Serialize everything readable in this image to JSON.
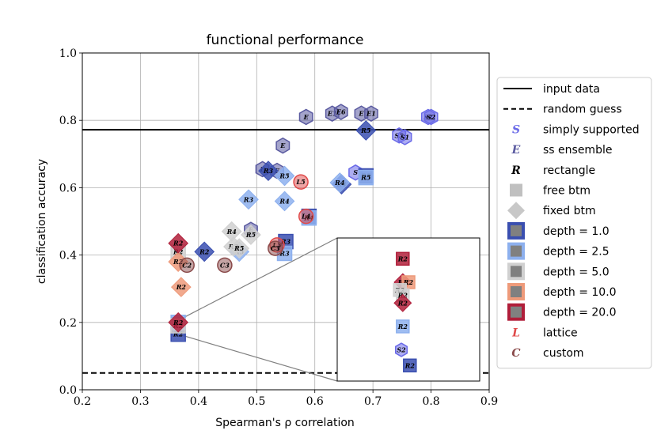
{
  "chart_data": {
    "type": "scatter",
    "title": "functional performance",
    "xlabel": "Spearman's ρ correlation",
    "ylabel": "classification accuracy",
    "xlim": [
      0.2,
      0.9
    ],
    "ylim": [
      0.0,
      1.0
    ],
    "xticks": [
      "0.2",
      "0.3",
      "0.4",
      "0.5",
      "0.6",
      "0.7",
      "0.8",
      "0.9"
    ],
    "yticks": [
      "0.0",
      "0.2",
      "0.4",
      "0.6",
      "0.8",
      "1.0"
    ],
    "grid": true,
    "legend_position": "outside-right",
    "hlines": [
      {
        "name": "input data",
        "y": 0.772,
        "style": "solid"
      },
      {
        "name": "random guess",
        "y": 0.05,
        "style": "dashed"
      }
    ],
    "colors": {
      "depth_1": "#3a4fb0",
      "depth_2_5": "#8db0ee",
      "depth_5": "#d0d0d0",
      "depth_10": "#ee9a7a",
      "depth_20": "#b01e3a",
      "ss_ensemble": "#5a5aa0",
      "simply_supported": "#6a6ae8",
      "lattice": "#e04a4a",
      "custom": "#8a4a4a"
    },
    "legend": [
      {
        "label": "input data",
        "kind": "line-solid"
      },
      {
        "label": "random guess",
        "kind": "line-dashed"
      },
      {
        "label": "simply supported",
        "kind": "letter",
        "letter": "S",
        "color": "simply_supported"
      },
      {
        "label": "ss ensemble",
        "kind": "letter",
        "letter": "E",
        "color": "ss_ensemble"
      },
      {
        "label": "rectangle",
        "kind": "letter",
        "letter": "R",
        "color": "black"
      },
      {
        "label": "free btm",
        "kind": "square"
      },
      {
        "label": "fixed btm",
        "kind": "diamond"
      },
      {
        "label": "depth = 1.0",
        "kind": "depth",
        "color": "depth_1"
      },
      {
        "label": "depth = 2.5",
        "kind": "depth",
        "color": "depth_2_5"
      },
      {
        "label": "depth = 5.0",
        "kind": "depth",
        "color": "depth_5"
      },
      {
        "label": "depth = 10.0",
        "kind": "depth",
        "color": "depth_10"
      },
      {
        "label": "depth = 20.0",
        "kind": "depth",
        "color": "depth_20"
      },
      {
        "label": "lattice",
        "kind": "letter",
        "letter": "L",
        "color": "lattice"
      },
      {
        "label": "custom",
        "kind": "letter",
        "letter": "C",
        "color": "custom"
      }
    ],
    "series": [
      {
        "name": "ss ensemble",
        "shape": "hexagon",
        "color": "ss_ensemble",
        "points": [
          {
            "x": 0.585,
            "y": 0.81,
            "label": "E"
          },
          {
            "x": 0.63,
            "y": 0.82,
            "label": "E1"
          },
          {
            "x": 0.645,
            "y": 0.825,
            "label": "E6"
          },
          {
            "x": 0.68,
            "y": 0.82,
            "label": "E"
          },
          {
            "x": 0.697,
            "y": 0.82,
            "label": "E1"
          },
          {
            "x": 0.545,
            "y": 0.725,
            "label": "E"
          },
          {
            "x": 0.51,
            "y": 0.655,
            "label": "E"
          },
          {
            "x": 0.535,
            "y": 0.65,
            "label": "E"
          },
          {
            "x": 0.49,
            "y": 0.475,
            "label": "E"
          }
        ]
      },
      {
        "name": "simply supported",
        "shape": "hexagon",
        "color": "simply_supported",
        "points": [
          {
            "x": 0.745,
            "y": 0.755,
            "label": "S5"
          },
          {
            "x": 0.755,
            "y": 0.75,
            "label": "S1"
          },
          {
            "x": 0.795,
            "y": 0.81,
            "label": "S2"
          },
          {
            "x": 0.8,
            "y": 0.81,
            "label": "S2"
          },
          {
            "x": 0.67,
            "y": 0.645,
            "label": "S"
          }
        ]
      },
      {
        "name": "depth 1.0 fixed btm",
        "shape": "diamond",
        "color": "depth_1",
        "points": [
          {
            "x": 0.688,
            "y": 0.77,
            "label": "R5"
          },
          {
            "x": 0.52,
            "y": 0.65,
            "label": "R3"
          },
          {
            "x": 0.41,
            "y": 0.41,
            "label": "R2"
          },
          {
            "x": 0.646,
            "y": 0.61,
            "label": "R4"
          }
        ]
      },
      {
        "name": "depth 1.0 free btm",
        "shape": "square",
        "color": "depth_1",
        "points": [
          {
            "x": 0.59,
            "y": 0.515,
            "label": "R4"
          },
          {
            "x": 0.55,
            "y": 0.44,
            "label": "R3"
          },
          {
            "x": 0.365,
            "y": 0.165,
            "label": "R2"
          },
          {
            "x": 0.688,
            "y": 0.635,
            "label": "R5"
          }
        ]
      },
      {
        "name": "depth 2.5 fixed btm",
        "shape": "diamond",
        "color": "depth_2_5",
        "points": [
          {
            "x": 0.548,
            "y": 0.635,
            "label": "R5"
          },
          {
            "x": 0.486,
            "y": 0.565,
            "label": "R3"
          },
          {
            "x": 0.548,
            "y": 0.56,
            "label": "R4"
          },
          {
            "x": 0.643,
            "y": 0.615,
            "label": "R4"
          },
          {
            "x": 0.47,
            "y": 0.41,
            "label": "R5"
          }
        ]
      },
      {
        "name": "depth 2.5 free btm",
        "shape": "square",
        "color": "depth_2_5",
        "points": [
          {
            "x": 0.59,
            "y": 0.51,
            "label": "R4"
          },
          {
            "x": 0.548,
            "y": 0.405,
            "label": "R3"
          },
          {
            "x": 0.688,
            "y": 0.63,
            "label": "R5"
          },
          {
            "x": 0.365,
            "y": 0.2,
            "label": "R2"
          }
        ]
      },
      {
        "name": "depth 5.0 fixed btm",
        "shape": "diamond",
        "color": "depth_5",
        "points": [
          {
            "x": 0.457,
            "y": 0.47,
            "label": "R4"
          },
          {
            "x": 0.49,
            "y": 0.46,
            "label": "R5"
          },
          {
            "x": 0.46,
            "y": 0.425,
            "label": "R3"
          },
          {
            "x": 0.47,
            "y": 0.42,
            "label": "R5"
          }
        ]
      },
      {
        "name": "depth 5.0 free btm",
        "shape": "square",
        "color": "depth_5",
        "points": [
          {
            "x": 0.365,
            "y": 0.41,
            "label": "R2"
          },
          {
            "x": 0.365,
            "y": 0.19,
            "label": "R2"
          }
        ]
      },
      {
        "name": "depth 10.0",
        "shape": "diamond",
        "color": "depth_10",
        "points": [
          {
            "x": 0.37,
            "y": 0.305,
            "label": "R2"
          },
          {
            "x": 0.365,
            "y": 0.38,
            "label": "R2"
          }
        ]
      },
      {
        "name": "depth 20.0",
        "shape": "diamond",
        "color": "depth_20",
        "points": [
          {
            "x": 0.365,
            "y": 0.435,
            "label": "R2"
          },
          {
            "x": 0.365,
            "y": 0.2,
            "label": "R2"
          }
        ]
      },
      {
        "name": "lattice",
        "shape": "circle",
        "color": "lattice",
        "points": [
          {
            "x": 0.576,
            "y": 0.617,
            "label": "L5"
          },
          {
            "x": 0.585,
            "y": 0.515,
            "label": "L4"
          },
          {
            "x": 0.535,
            "y": 0.43,
            "label": "L3"
          }
        ]
      },
      {
        "name": "custom",
        "shape": "circle",
        "color": "custom",
        "points": [
          {
            "x": 0.38,
            "y": 0.37,
            "label": "C2"
          },
          {
            "x": 0.445,
            "y": 0.37,
            "label": "C3"
          },
          {
            "x": 0.532,
            "y": 0.42,
            "label": "C3"
          }
        ]
      }
    ],
    "inset": {
      "xlim": [
        0.355,
        0.375
      ],
      "ylim": [
        0.16,
        0.215
      ],
      "points": [
        {
          "x": 0.3642,
          "y": 0.207,
          "label": "R2",
          "shape": "square",
          "color": "depth_20"
        },
        {
          "x": 0.3642,
          "y": 0.198,
          "label": "R2",
          "shape": "diamond",
          "color": "depth_20"
        },
        {
          "x": 0.365,
          "y": 0.198,
          "label": "R2",
          "shape": "square",
          "color": "depth_10"
        },
        {
          "x": 0.3638,
          "y": 0.195,
          "label": "R2",
          "shape": "square",
          "color": "depth_5"
        },
        {
          "x": 0.3642,
          "y": 0.193,
          "label": "R2",
          "shape": "square",
          "color": "depth_5"
        },
        {
          "x": 0.3642,
          "y": 0.19,
          "label": "R2",
          "shape": "diamond",
          "color": "depth_20"
        },
        {
          "x": 0.3642,
          "y": 0.181,
          "label": "R2",
          "shape": "square",
          "color": "depth_2_5"
        },
        {
          "x": 0.364,
          "y": 0.172,
          "label": "S2",
          "shape": "hexagon",
          "color": "simply_supported"
        },
        {
          "x": 0.3652,
          "y": 0.166,
          "label": "R2",
          "shape": "square",
          "color": "depth_1"
        }
      ]
    }
  }
}
